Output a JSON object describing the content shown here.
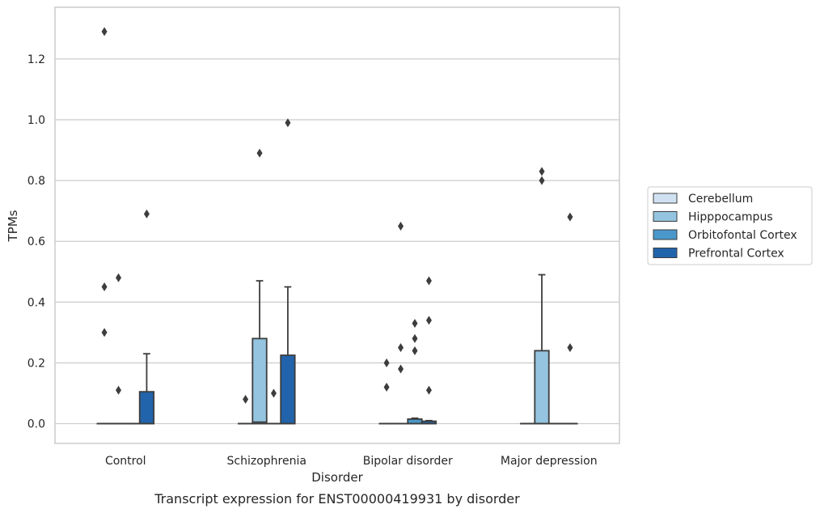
{
  "chart_data": {
    "type": "box",
    "caption": "Transcript expression for ENST00000419931 by disorder",
    "xlabel": "Disorder",
    "ylabel": "TPMs",
    "ylim": [
      -0.065,
      1.37
    ],
    "yticks": [
      0.0,
      0.2,
      0.4,
      0.6,
      0.8,
      1.0,
      1.2
    ],
    "grid": true,
    "legend_position": "right",
    "categories": [
      "Control",
      "Schizophrenia",
      "Bipolar disorder",
      "Major depression"
    ],
    "series": [
      {
        "name": "Cerebellum",
        "color": "#d0e1f2",
        "boxes": [
          {
            "q1": 0,
            "median": 0,
            "q3": 0,
            "whisker_low": 0,
            "whisker_high": 0,
            "outliers": [
              1.29,
              0.45,
              0.3
            ]
          },
          {
            "q1": 0,
            "median": 0,
            "q3": 0,
            "whisker_low": 0,
            "whisker_high": 0,
            "outliers": [
              0.08
            ]
          },
          {
            "q1": 0,
            "median": 0,
            "q3": 0,
            "whisker_low": 0,
            "whisker_high": 0,
            "outliers": [
              0.2,
              0.12
            ]
          },
          {
            "q1": 0,
            "median": 0,
            "q3": 0,
            "whisker_low": 0,
            "whisker_high": 0,
            "outliers": []
          }
        ]
      },
      {
        "name": "Hipppocampus",
        "color": "#94c4df",
        "boxes": [
          {
            "q1": 0,
            "median": 0,
            "q3": 0,
            "whisker_low": 0,
            "whisker_high": 0,
            "outliers": [
              0.48,
              0.11
            ]
          },
          {
            "q1": 0,
            "median": 0.005,
            "q3": 0.28,
            "whisker_low": 0,
            "whisker_high": 0.47,
            "outliers": [
              0.89
            ]
          },
          {
            "q1": 0,
            "median": 0,
            "q3": 0,
            "whisker_low": 0,
            "whisker_high": 0,
            "outliers": [
              0.65,
              0.25,
              0.18
            ]
          },
          {
            "q1": 0,
            "median": 0,
            "q3": 0.24,
            "whisker_low": 0,
            "whisker_high": 0.49,
            "outliers": [
              0.83,
              0.8
            ]
          }
        ]
      },
      {
        "name": "Orbitofontal Cortex",
        "color": "#4a98c9",
        "boxes": [
          {
            "q1": 0,
            "median": 0,
            "q3": 0,
            "whisker_low": 0,
            "whisker_high": 0,
            "outliers": []
          },
          {
            "q1": 0,
            "median": 0,
            "q3": 0,
            "whisker_low": 0,
            "whisker_high": 0,
            "outliers": [
              0.1
            ]
          },
          {
            "q1": 0,
            "median": 0,
            "q3": 0.015,
            "whisker_low": 0,
            "whisker_high": 0.018,
            "outliers": [
              0.33,
              0.28,
              0.24
            ]
          },
          {
            "q1": 0,
            "median": 0,
            "q3": 0,
            "whisker_low": 0,
            "whisker_high": 0,
            "outliers": []
          }
        ]
      },
      {
        "name": "Prefrontal Cortex",
        "color": "#2164ab",
        "boxes": [
          {
            "q1": 0,
            "median": 0,
            "q3": 0.105,
            "whisker_low": 0,
            "whisker_high": 0.23,
            "outliers": [
              0.69
            ]
          },
          {
            "q1": 0,
            "median": 0,
            "q3": 0.225,
            "whisker_low": 0,
            "whisker_high": 0.45,
            "outliers": [
              0.99
            ]
          },
          {
            "q1": 0,
            "median": 0,
            "q3": 0.008,
            "whisker_low": 0,
            "whisker_high": 0.01,
            "outliers": [
              0.47,
              0.34,
              0.11
            ]
          },
          {
            "q1": 0,
            "median": 0,
            "q3": 0,
            "whisker_low": 0,
            "whisker_high": 0,
            "outliers": [
              0.68,
              0.25
            ]
          }
        ]
      }
    ]
  }
}
